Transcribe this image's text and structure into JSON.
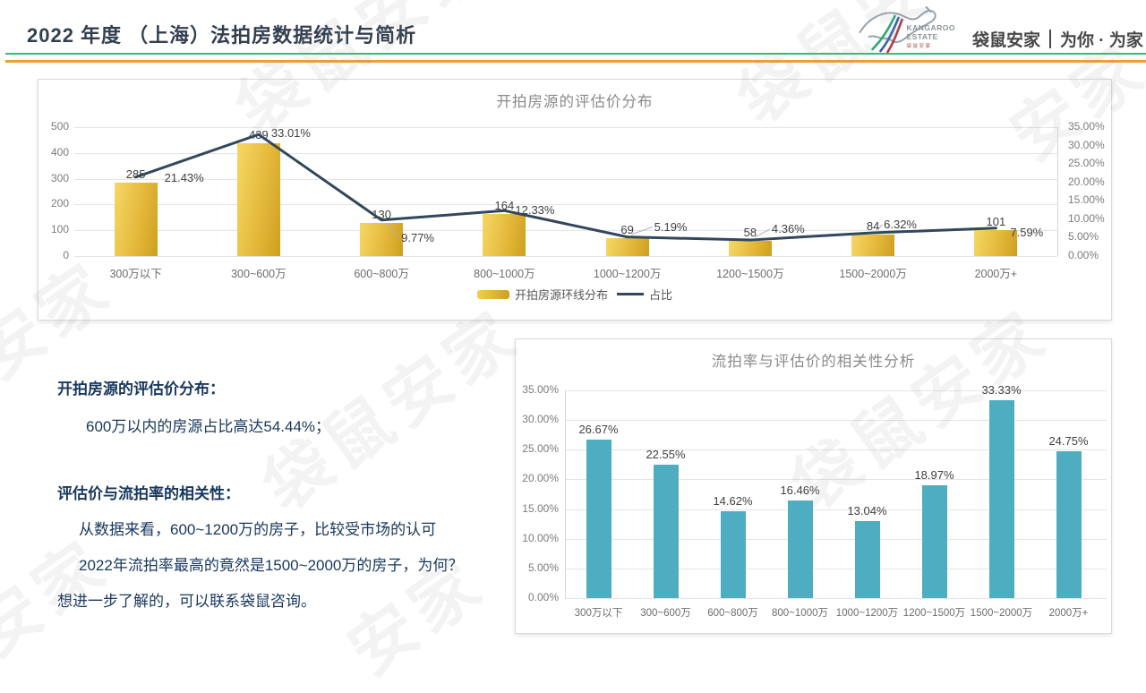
{
  "header": {
    "title": "2022 年度 （上海）法拍房数据统计与简析",
    "logo": {
      "name_en_line1": "KANGAROO",
      "name_en_line2": "ESTATE",
      "name_cn_small": "袋 鼠 安 家",
      "tagline_brand": "袋鼠安家",
      "tagline_slogan": "为你 · 为家"
    },
    "accent_green": "#3cb878",
    "accent_orange": "#e7a23c"
  },
  "watermark": {
    "full": "袋鼠安家",
    "short": "安家"
  },
  "chart_data": [
    {
      "type": "bar",
      "combo_with_line": true,
      "title": "开拍房源的评估价分布",
      "categories": [
        "300万以下",
        "300~600万",
        "600~800万",
        "800~1000万",
        "1000~1200万",
        "1200~1500万",
        "1500~2000万",
        "2000万+"
      ],
      "series": [
        {
          "name": "开拍房源环线分布",
          "type": "bar",
          "values": [
            285,
            439,
            130,
            164,
            69,
            58,
            84,
            101
          ]
        },
        {
          "name": "占比",
          "type": "line",
          "values": [
            21.43,
            33.01,
            9.77,
            12.33,
            5.19,
            4.36,
            6.32,
            7.59
          ],
          "labels": [
            "21.43%",
            "33.01%",
            "9.77%",
            "12.33%",
            "5.19%",
            "4.36%",
            "6.32%",
            "7.59%"
          ]
        }
      ],
      "left_axis": {
        "ticks": [
          "500",
          "400",
          "300",
          "200",
          "100",
          "0"
        ],
        "min": 0,
        "max": 500
      },
      "right_axis": {
        "ticks": [
          "35.00%",
          "30.00%",
          "25.00%",
          "20.00%",
          "15.00%",
          "10.00%",
          "5.00%",
          "0.00%"
        ],
        "min": 0,
        "max": 35
      },
      "legend_position": "bottom",
      "grid": true,
      "colors": {
        "bar": "#e6bc3f",
        "line": "#32475c"
      }
    },
    {
      "type": "bar",
      "title": "流拍率与评估价的相关性分析",
      "categories": [
        "300万以下",
        "300~600万",
        "600~800万",
        "800~1000万",
        "1000~1200万",
        "1200~1500万",
        "1500~2000万",
        "2000万+"
      ],
      "values": [
        26.67,
        22.55,
        14.62,
        16.46,
        13.04,
        18.97,
        33.33,
        24.75
      ],
      "labels": [
        "26.67%",
        "22.55%",
        "14.62%",
        "16.46%",
        "13.04%",
        "18.97%",
        "33.33%",
        "24.75%"
      ],
      "y_axis": {
        "ticks": [
          "35.00%",
          "30.00%",
          "25.00%",
          "20.00%",
          "15.00%",
          "10.00%",
          "5.00%",
          "0.00%"
        ],
        "min": 0,
        "max": 35
      },
      "grid": true,
      "bar_color": "#4fadc2"
    }
  ],
  "notes": {
    "section1_heading": "开拍房源的评估价分布：",
    "section1_line1": "600万以内的房源占比高达54.44%；",
    "section2_heading": "评估价与流拍率的相关性：",
    "section2_line1": "从数据来看，600~1200万的房子，比较受市场的认可",
    "section2_line2": "2022年流拍率最高的竟然是1500~2000万的房子，为何？",
    "footer_line": "想进一步了解的，可以联系袋鼠咨询。"
  }
}
